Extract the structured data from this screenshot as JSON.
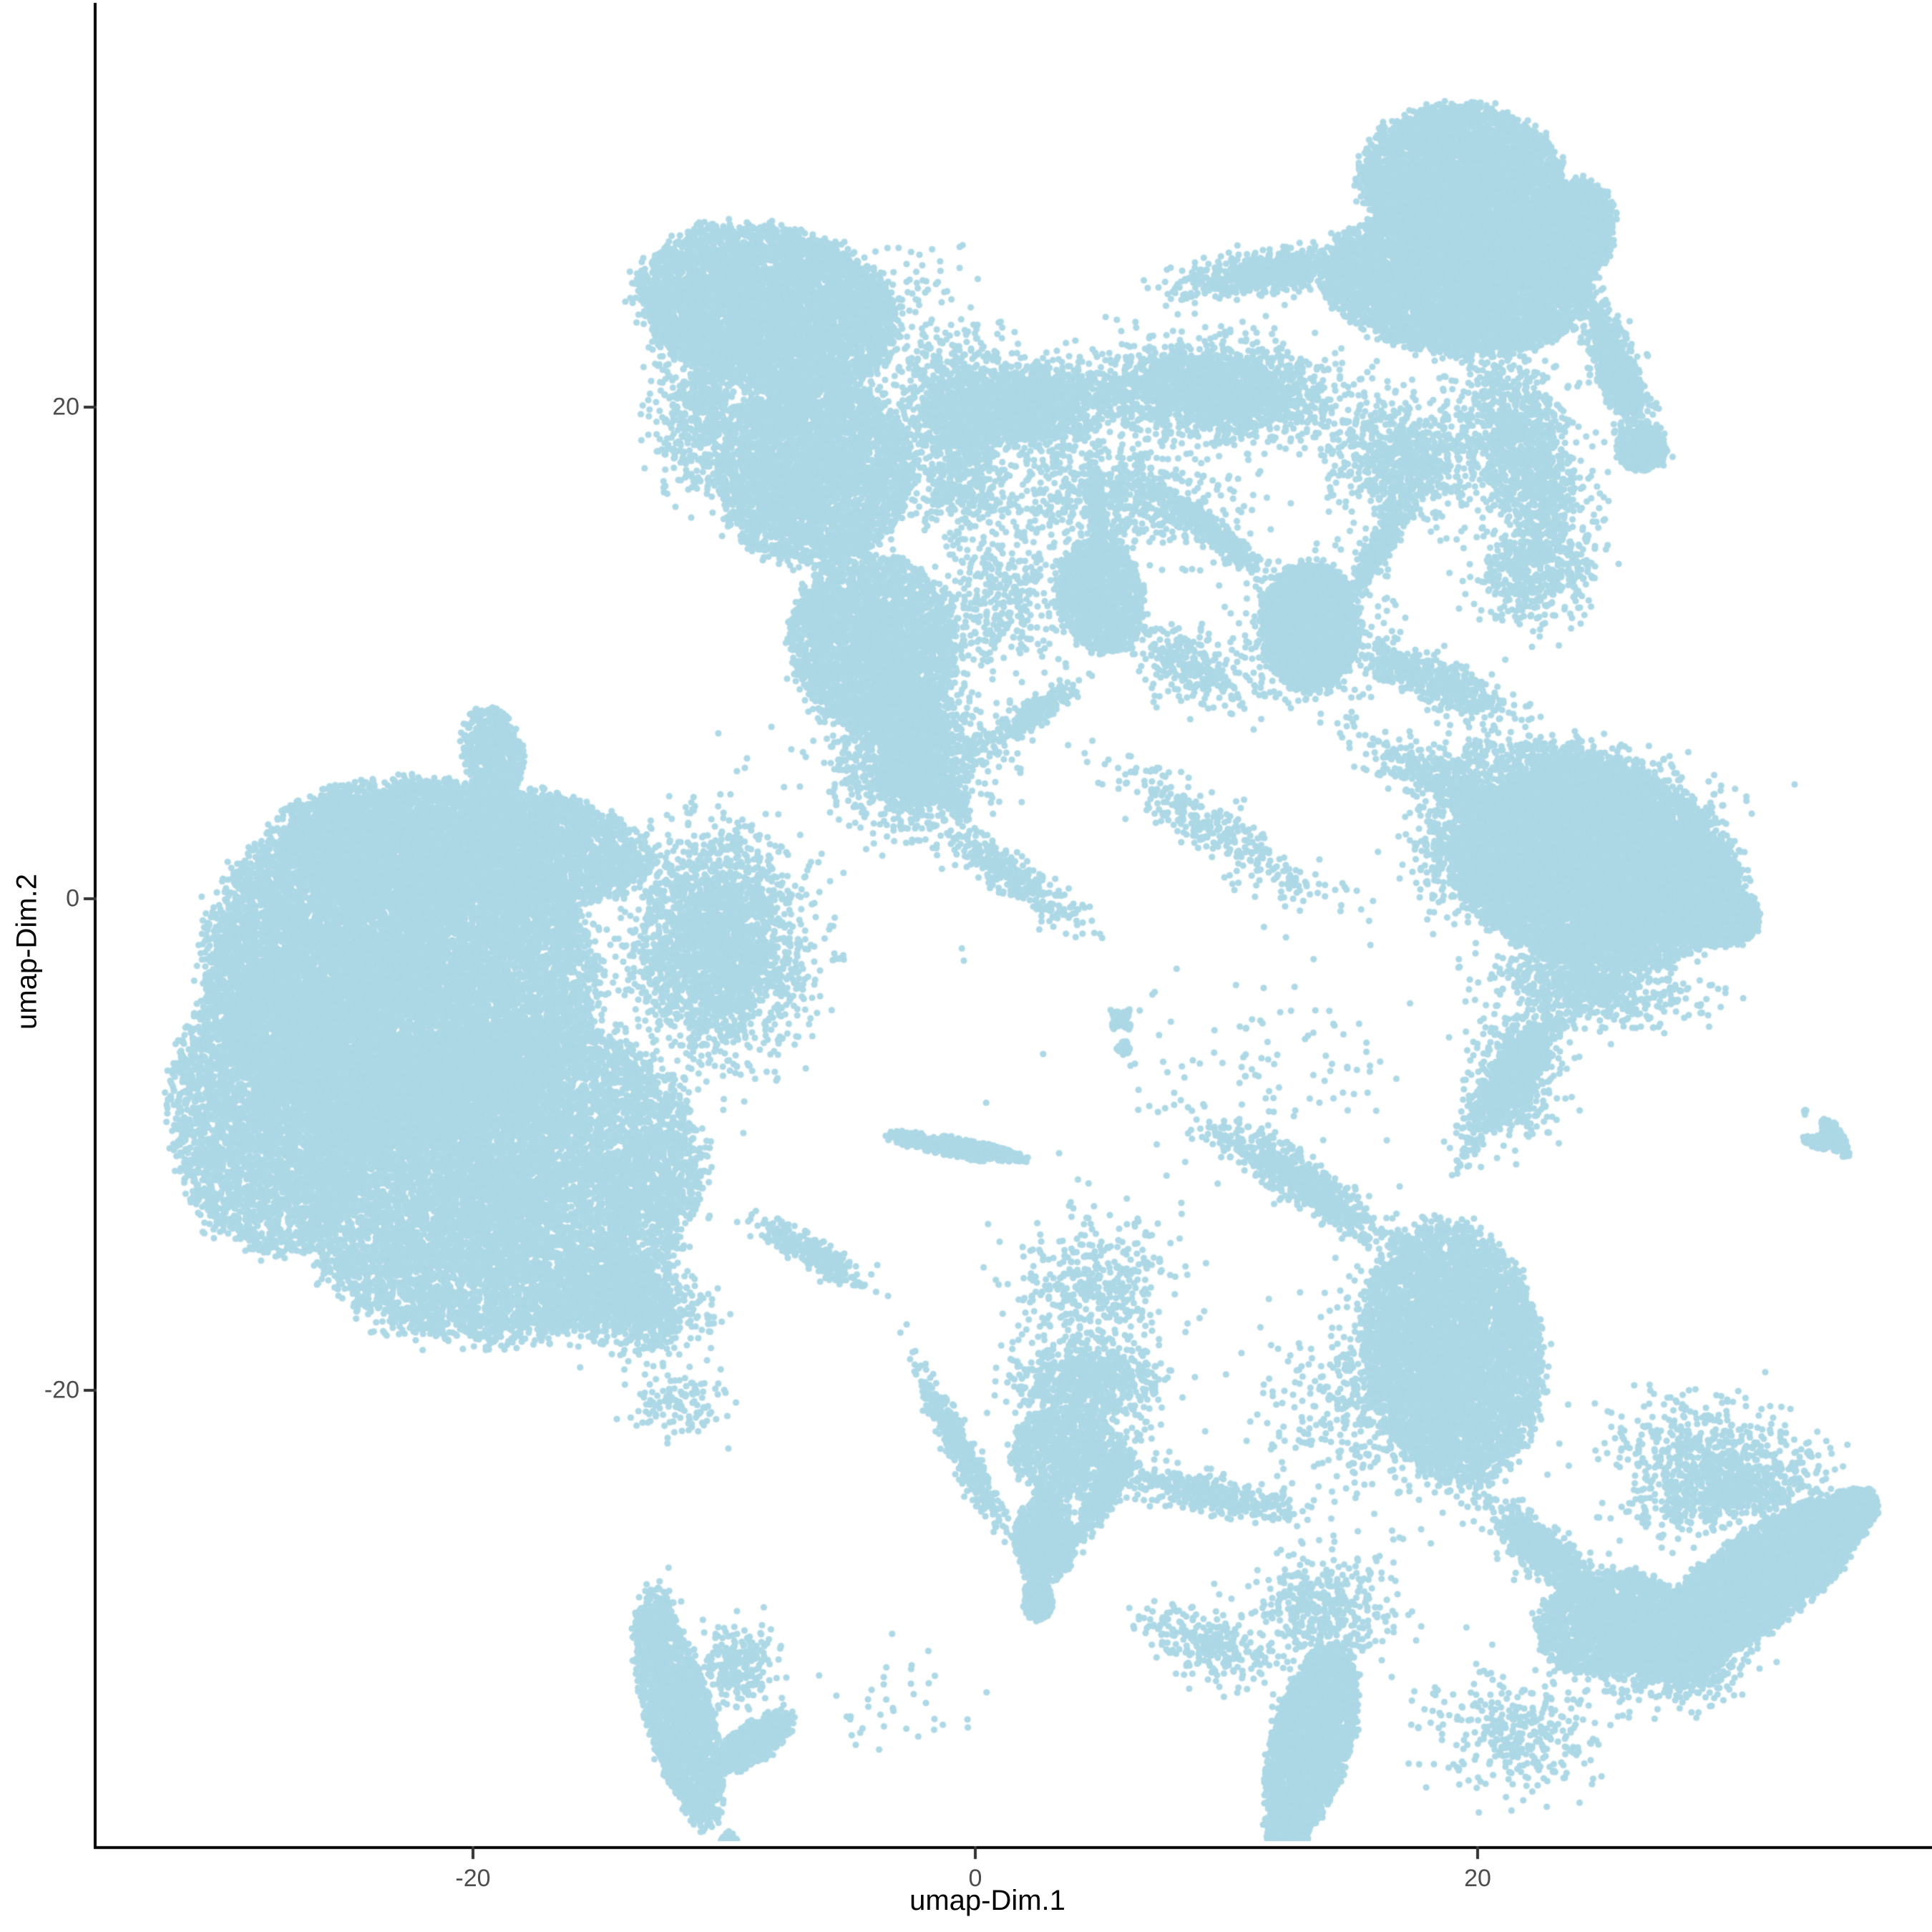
{
  "chart_data": {
    "type": "scatter",
    "title": "",
    "xlabel": "umap-Dim.1",
    "ylabel": "umap-Dim.2",
    "x_ticks": [
      {
        "value": -20,
        "label": "-20"
      },
      {
        "value": 0,
        "label": "0"
      },
      {
        "value": 20,
        "label": "20"
      }
    ],
    "y_ticks": [
      {
        "value": 20,
        "label": "20"
      },
      {
        "value": 0,
        "label": "0"
      },
      {
        "value": -20,
        "label": "-20"
      }
    ],
    "xlim": [
      -35,
      38
    ],
    "ylim": [
      -38.5,
      36.3
    ],
    "grid": false,
    "legend": "none",
    "point_color": "#ADD8E6",
    "point_radius_px": 4.6,
    "background": "#FFFFFF",
    "axis_color": "#000000",
    "tick_color": "#333333",
    "tick_label_color": "#4D4D4D",
    "series_name": "cells",
    "clusters": [
      {
        "name": "bigleft-core-a",
        "cx": -22.9,
        "cy": -3.0,
        "sx": 7.7,
        "sy": 6.9,
        "ang": -10,
        "n": 14000,
        "d": "u"
      },
      {
        "name": "bigleft-core-b",
        "cx": -18.9,
        "cy": -11.5,
        "sx": 8.0,
        "sy": 6.4,
        "ang": 12,
        "n": 11000,
        "d": "u"
      },
      {
        "name": "bigleft-west",
        "cx": -28.0,
        "cy": -8.6,
        "sx": 4.0,
        "sy": 5.8,
        "ang": 0,
        "n": 4200,
        "d": "u"
      },
      {
        "name": "bigleft-north",
        "cx": -20.3,
        "cy": 2.2,
        "sx": 7.4,
        "sy": 2.6,
        "ang": -5,
        "n": 4800,
        "d": "u"
      },
      {
        "name": "bigleft-east-fringe",
        "cx": -10.3,
        "cy": -1.9,
        "sx": 3.2,
        "sy": 4.4,
        "ang": 0,
        "n": 2600,
        "d": "g"
      },
      {
        "name": "bigleft-se-fringe",
        "cx": -14.0,
        "cy": -16.4,
        "sx": 2.8,
        "sy": 1.7,
        "ang": -15,
        "n": 1300,
        "d": "g"
      },
      {
        "name": "bigleft-south-dots",
        "cx": -11.8,
        "cy": -20.5,
        "sx": 2.0,
        "sy": 1.5,
        "ang": 0,
        "n": 120,
        "d": "g"
      },
      {
        "name": "smallblob-nw",
        "cx": -19.2,
        "cy": 6.0,
        "sx": 1.2,
        "sy": 1.9,
        "ang": 10,
        "n": 550,
        "d": "u"
      },
      {
        "name": "smallblob-stem",
        "cx": -18.5,
        "cy": 2.6,
        "sx": 0.5,
        "sy": 1.2,
        "ang": 80,
        "n": 150,
        "d": "g"
      },
      {
        "name": "mushroom-dome",
        "cx": -8.2,
        "cy": 24.0,
        "sx": 5.2,
        "sy": 3.3,
        "ang": -12,
        "n": 5200,
        "d": "u"
      },
      {
        "name": "mushroom-mid",
        "cx": -6.4,
        "cy": 17.4,
        "sx": 3.9,
        "sy": 3.8,
        "ang": 0,
        "n": 3800,
        "d": "u"
      },
      {
        "name": "mushroom-lower",
        "cx": -4.1,
        "cy": 10.4,
        "sx": 3.3,
        "sy": 3.6,
        "ang": 8,
        "n": 3000,
        "d": "u"
      },
      {
        "name": "mushroom-flare",
        "cx": -2.6,
        "cy": 5.7,
        "sx": 3.0,
        "sy": 2.6,
        "ang": 0,
        "n": 1200,
        "d": "g"
      },
      {
        "name": "mushroom-west-fringe",
        "cx": -10.9,
        "cy": 20.3,
        "sx": 1.8,
        "sy": 3.5,
        "ang": 0,
        "n": 700,
        "d": "g"
      },
      {
        "name": "mushroom-east-fringe",
        "cx": -0.9,
        "cy": 20.0,
        "sx": 2.2,
        "sy": 3.0,
        "ang": 0,
        "n": 700,
        "d": "g"
      },
      {
        "name": "mushroom-spray-1",
        "cx": -3.2,
        "cy": 6.0,
        "sx": 2.8,
        "sy": 0.5,
        "ang": -68,
        "n": 300,
        "d": "g"
      },
      {
        "name": "mushroom-spray-2",
        "cx": -1.2,
        "cy": 4.5,
        "sx": 2.5,
        "sy": 0.45,
        "ang": -55,
        "n": 220,
        "d": "g"
      },
      {
        "name": "mushroom-spray-cloud",
        "cx": -2.4,
        "cy": 7.2,
        "sx": 2.0,
        "sy": 3.0,
        "ang": 0,
        "n": 600,
        "d": "g"
      },
      {
        "name": "trail-to-center",
        "cx": 1.5,
        "cy": 0.9,
        "sx": 3.5,
        "sy": 0.8,
        "ang": -34,
        "n": 320,
        "d": "g"
      },
      {
        "name": "saddle-west",
        "cx": 1.9,
        "cy": 20.0,
        "sx": 3.5,
        "sy": 1.7,
        "ang": 5,
        "n": 1700,
        "d": "g"
      },
      {
        "name": "saddle-east",
        "cx": 9.6,
        "cy": 20.7,
        "sx": 4.5,
        "sy": 1.8,
        "ang": -4,
        "n": 2100,
        "d": "g"
      },
      {
        "name": "saddle-under",
        "cx": 5.6,
        "cy": 16.2,
        "sx": 4.5,
        "sy": 2.3,
        "ang": 0,
        "n": 700,
        "d": "g"
      },
      {
        "name": "saddle-under-west",
        "cx": -0.4,
        "cy": 16.8,
        "sx": 2.0,
        "sy": 2.0,
        "ang": 0,
        "n": 300,
        "d": "g"
      },
      {
        "name": "top-arm-west",
        "cx": 11.9,
        "cy": 25.5,
        "sx": 3.4,
        "sy": 0.8,
        "ang": 8,
        "n": 750,
        "d": "g"
      },
      {
        "name": "top-dome",
        "cx": 19.3,
        "cy": 29.3,
        "sx": 4.0,
        "sy": 3.0,
        "ang": 0,
        "n": 4000,
        "d": "u"
      },
      {
        "name": "top-body",
        "cx": 19.3,
        "cy": 25.2,
        "sx": 5.4,
        "sy": 3.0,
        "ang": -4,
        "n": 6000,
        "d": "u"
      },
      {
        "name": "top-east-bulge",
        "cx": 23.6,
        "cy": 27.0,
        "sx": 1.8,
        "sy": 2.3,
        "ang": -20,
        "n": 1600,
        "d": "u"
      },
      {
        "name": "top-arm-se",
        "cx": 25.5,
        "cy": 21.6,
        "sx": 2.7,
        "sy": 0.8,
        "ang": -69,
        "n": 900,
        "d": "g"
      },
      {
        "name": "top-arm-tip",
        "cx": 26.5,
        "cy": 18.3,
        "sx": 1.0,
        "sy": 0.9,
        "ang": 0,
        "n": 450,
        "d": "u"
      },
      {
        "name": "top-neck",
        "cx": 21.9,
        "cy": 17.9,
        "sx": 5.0,
        "sy": 2.0,
        "ang": -75,
        "n": 1400,
        "d": "g"
      },
      {
        "name": "top-neck-sparse",
        "cx": 22.1,
        "cy": 13.3,
        "sx": 2.5,
        "sy": 2.0,
        "ang": 0,
        "n": 400,
        "d": "g"
      },
      {
        "name": "top-under-spray",
        "cx": 17.0,
        "cy": 17.9,
        "sx": 3.0,
        "sy": 2.5,
        "ang": 0,
        "n": 800,
        "d": "g"
      },
      {
        "name": "flame-streak",
        "cx": 4.8,
        "cy": 15.9,
        "sx": 2.0,
        "sy": 0.35,
        "ang": -86,
        "n": 320,
        "d": "g"
      },
      {
        "name": "flame-blob",
        "cx": 5.0,
        "cy": 12.3,
        "sx": 1.7,
        "sy": 2.3,
        "ang": 10,
        "n": 1300,
        "d": "u"
      },
      {
        "name": "flame-tail",
        "cx": 2.3,
        "cy": 7.5,
        "sx": 2.1,
        "sy": 0.5,
        "ang": 35,
        "n": 260,
        "d": "g"
      },
      {
        "name": "flame-chain-east",
        "cx": 8.6,
        "cy": 9.5,
        "sx": 3.0,
        "sy": 1.3,
        "ang": -32,
        "n": 300,
        "d": "g"
      },
      {
        "name": "moth-body",
        "cx": 13.3,
        "cy": 11.1,
        "sx": 1.9,
        "sy": 2.6,
        "ang": 0,
        "n": 2400,
        "d": "u"
      },
      {
        "name": "moth-arm-nw",
        "cx": 9.3,
        "cy": 15.0,
        "sx": 2.7,
        "sy": 0.5,
        "ang": -40,
        "n": 450,
        "d": "g"
      },
      {
        "name": "moth-arm-ne",
        "cx": 16.1,
        "cy": 14.4,
        "sx": 2.3,
        "sy": 0.5,
        "ang": 63,
        "n": 420,
        "d": "g"
      },
      {
        "name": "moth-band-se",
        "cx": 18.4,
        "cy": 8.8,
        "sx": 3.3,
        "sy": 0.9,
        "ang": -23,
        "n": 520,
        "d": "g"
      },
      {
        "name": "moth-halo",
        "cx": 13.3,
        "cy": 10.9,
        "sx": 3.0,
        "sy": 3.0,
        "ang": 0,
        "n": 450,
        "d": "g"
      },
      {
        "name": "mid-sparse-west",
        "cx": 1.1,
        "cy": 12.1,
        "sx": 2.6,
        "sy": 3.0,
        "ang": 0,
        "n": 380,
        "d": "g"
      },
      {
        "name": "top-left-sparse",
        "cx": -3.2,
        "cy": 24.3,
        "sx": 2.6,
        "sy": 2.6,
        "ang": 0,
        "n": 90,
        "d": "g"
      },
      {
        "name": "diag-sparse-south",
        "cx": 9.9,
        "cy": 2.6,
        "sx": 5.5,
        "sy": 1.1,
        "ang": -33,
        "n": 330,
        "d": "g"
      },
      {
        "name": "void-singles",
        "cx": 11.0,
        "cy": -7.1,
        "sx": 8.0,
        "sy": 5.0,
        "ang": 0,
        "n": 120,
        "d": "g"
      },
      {
        "name": "x-mini-1",
        "cx": 5.8,
        "cy": -4.9,
        "sx": 0.55,
        "sy": 0.18,
        "ang": 45,
        "n": 70,
        "d": "u"
      },
      {
        "name": "x-mini-2",
        "cx": 5.8,
        "cy": -4.9,
        "sx": 0.55,
        "sy": 0.18,
        "ang": -45,
        "n": 70,
        "d": "u"
      },
      {
        "name": "x-mini-dot",
        "cx": 5.9,
        "cy": -6.1,
        "sx": 0.3,
        "sy": 0.3,
        "ang": 0,
        "n": 30,
        "d": "u"
      },
      {
        "name": "dash-cluster",
        "cx": -0.8,
        "cy": -10.1,
        "sx": 2.9,
        "sy": 0.4,
        "ang": -10,
        "n": 420,
        "d": "u"
      },
      {
        "name": "rightblob-core",
        "cx": 24.7,
        "cy": 1.3,
        "sx": 5.7,
        "sy": 4.0,
        "ang": -12,
        "n": 9500,
        "d": "u"
      },
      {
        "name": "rightblob-tip",
        "cx": 29.5,
        "cy": -0.6,
        "sx": 1.7,
        "sy": 1.3,
        "ang": -15,
        "n": 1300,
        "d": "u"
      },
      {
        "name": "rightblob-north-fringe",
        "cx": 23.8,
        "cy": 5.1,
        "sx": 4.5,
        "sy": 1.3,
        "ang": -10,
        "n": 900,
        "d": "g"
      },
      {
        "name": "rightblob-west-fringe",
        "cx": 19.9,
        "cy": 2.2,
        "sx": 2.2,
        "sy": 2.8,
        "ang": 0,
        "n": 850,
        "d": "g"
      },
      {
        "name": "rightblob-south-fringe",
        "cx": 24.4,
        "cy": -3.6,
        "sx": 4.0,
        "sy": 1.3,
        "ang": -8,
        "n": 700,
        "d": "g"
      },
      {
        "name": "bridge-moth-rightblob",
        "cx": 18.7,
        "cy": 4.8,
        "sx": 3.6,
        "sy": 1.0,
        "ang": -25,
        "n": 450,
        "d": "g"
      },
      {
        "name": "rightblob-tail",
        "cx": 21.4,
        "cy": -7.2,
        "sx": 3.2,
        "sy": 0.8,
        "ang": 58,
        "n": 850,
        "d": "g"
      },
      {
        "name": "rightblob-tail-sparse",
        "cx": 21.4,
        "cy": -7.2,
        "sx": 1.8,
        "sy": 2.5,
        "ang": 0,
        "n": 380,
        "d": "g"
      },
      {
        "name": "bottommid-core",
        "cx": 19.0,
        "cy": -18.5,
        "sx": 3.5,
        "sy": 5.3,
        "ang": 8,
        "n": 5200,
        "d": "u"
      },
      {
        "name": "bottommid-arm-nw",
        "cx": 12.9,
        "cy": -11.5,
        "sx": 3.9,
        "sy": 0.8,
        "ang": -34,
        "n": 850,
        "d": "g"
      },
      {
        "name": "bottommid-halo",
        "cx": 16.7,
        "cy": -20.2,
        "sx": 4.5,
        "sy": 4.0,
        "ang": 0,
        "n": 800,
        "d": "g"
      },
      {
        "name": "bottommid-link",
        "cx": 22.6,
        "cy": -26.5,
        "sx": 2.6,
        "sy": 1.0,
        "ang": -38,
        "n": 650,
        "d": "g"
      },
      {
        "name": "bottommid-lower-blob",
        "cx": 25.3,
        "cy": -29.5,
        "sx": 2.9,
        "sy": 2.1,
        "ang": 10,
        "n": 2100,
        "d": "u"
      },
      {
        "name": "arrow-core",
        "cx": 31.0,
        "cy": -27.9,
        "sx": 5.3,
        "sy": 1.9,
        "ang": 37,
        "n": 4600,
        "d": "u"
      },
      {
        "name": "arrow-tip",
        "cx": 34.8,
        "cy": -25.0,
        "sx": 1.3,
        "sy": 0.9,
        "ang": 37,
        "n": 500,
        "d": "u"
      },
      {
        "name": "arrow-north-fringe",
        "cx": 30.1,
        "cy": -24.0,
        "sx": 3.5,
        "sy": 1.6,
        "ang": 10,
        "n": 650,
        "d": "g"
      },
      {
        "name": "arrow-south-fringe",
        "cx": 28.1,
        "cy": -31.0,
        "sx": 2.6,
        "sy": 1.6,
        "ang": 10,
        "n": 700,
        "d": "g"
      },
      {
        "name": "arrow-chain-north",
        "cx": 29.0,
        "cy": -22.5,
        "sx": 3.4,
        "sy": 2.3,
        "ang": 0,
        "n": 450,
        "d": "g"
      },
      {
        "name": "vfan-stack-1",
        "cx": 2.8,
        "cy": -26.0,
        "sx": 1.2,
        "sy": 1.8,
        "ang": 0,
        "n": 800,
        "d": "u"
      },
      {
        "name": "vfan-stack-2",
        "cx": 3.6,
        "cy": -22.5,
        "sx": 2.2,
        "sy": 1.8,
        "ang": 0,
        "n": 900,
        "d": "u"
      },
      {
        "name": "vfan-stack-3",
        "cx": 4.5,
        "cy": -19.6,
        "sx": 2.9,
        "sy": 1.6,
        "ang": 0,
        "n": 800,
        "d": "g"
      },
      {
        "name": "vfan-vertex",
        "cx": 2.5,
        "cy": -28.5,
        "sx": 0.6,
        "sy": 0.9,
        "ang": 0,
        "n": 350,
        "d": "u"
      },
      {
        "name": "vfan-ray-nw",
        "cx": -0.6,
        "cy": -22.4,
        "sx": 3.5,
        "sy": 0.5,
        "ang": -63,
        "n": 450,
        "d": "g"
      },
      {
        "name": "vfan-edge-e",
        "cx": 5.0,
        "cy": -24.4,
        "sx": 2.5,
        "sy": 0.5,
        "ang": 58,
        "n": 420,
        "d": "g"
      },
      {
        "name": "vfan-band-e",
        "cx": 9.3,
        "cy": -24.2,
        "sx": 3.7,
        "sy": 0.8,
        "ang": -13,
        "n": 420,
        "d": "g"
      },
      {
        "name": "vfan-halo-n",
        "cx": 4.8,
        "cy": -15.8,
        "sx": 3.2,
        "sy": 2.8,
        "ang": 0,
        "n": 420,
        "d": "g"
      },
      {
        "name": "vfan-chain-nw",
        "cx": -6.4,
        "cy": -14.5,
        "sx": 2.6,
        "sy": 0.6,
        "ang": -31,
        "n": 260,
        "d": "g"
      },
      {
        "name": "dagger-main",
        "cx": -11.8,
        "cy": -33.2,
        "sx": 4.7,
        "sy": 1.3,
        "ang": -75,
        "n": 1900,
        "d": "u"
      },
      {
        "name": "dagger-wing",
        "cx": -8.8,
        "cy": -34.3,
        "sx": 1.85,
        "sy": 0.8,
        "ang": 35,
        "n": 520,
        "d": "u"
      },
      {
        "name": "dagger-inner",
        "cx": -9.5,
        "cy": -31.3,
        "sx": 1.5,
        "sy": 1.5,
        "ang": 0,
        "n": 240,
        "d": "g"
      },
      {
        "name": "dagger-tip-dot",
        "cx": -9.8,
        "cy": -38.3,
        "sx": 0.35,
        "sy": 0.35,
        "ang": 0,
        "n": 35,
        "d": "u"
      },
      {
        "name": "dagger-top-fringe",
        "cx": -12.6,
        "cy": -29.2,
        "sx": 0.7,
        "sy": 1.2,
        "ang": 0,
        "n": 180,
        "d": "g"
      },
      {
        "name": "between-dagger-vfan",
        "cx": -3.2,
        "cy": -32.7,
        "sx": 3.0,
        "sy": 2.5,
        "ang": 0,
        "n": 40,
        "d": "g"
      },
      {
        "name": "cone-main",
        "cx": 13.4,
        "cy": -34.2,
        "sx": 4.0,
        "sy": 1.6,
        "ang": 75,
        "n": 2600,
        "d": "u"
      },
      {
        "name": "cone-apex",
        "cx": 12.4,
        "cy": -38.0,
        "sx": 0.9,
        "sy": 1.2,
        "ang": 0,
        "n": 280,
        "d": "u"
      },
      {
        "name": "cone-halo-n",
        "cx": 13.9,
        "cy": -28.9,
        "sx": 2.8,
        "sy": 2.2,
        "ang": 0,
        "n": 450,
        "d": "g"
      },
      {
        "name": "cone-chain-w",
        "cx": 9.3,
        "cy": -30.4,
        "sx": 2.6,
        "sy": 1.3,
        "ang": -20,
        "n": 260,
        "d": "g"
      },
      {
        "name": "bottom-sparse-se",
        "cx": 21.6,
        "cy": -33.9,
        "sx": 3.4,
        "sy": 2.4,
        "ang": 0,
        "n": 350,
        "d": "g"
      },
      {
        "name": "ycluster-main",
        "cx": 34.2,
        "cy": -9.7,
        "sx": 0.9,
        "sy": 0.35,
        "ang": -58,
        "n": 150,
        "d": "u"
      },
      {
        "name": "ycluster-branch",
        "cx": 33.5,
        "cy": -9.9,
        "sx": 0.55,
        "sy": 0.28,
        "ang": -15,
        "n": 90,
        "d": "u"
      },
      {
        "name": "ycluster-dot",
        "cx": 33.0,
        "cy": -8.7,
        "sx": 0.12,
        "sy": 0.12,
        "ang": 0,
        "n": 6,
        "d": "u"
      }
    ]
  }
}
